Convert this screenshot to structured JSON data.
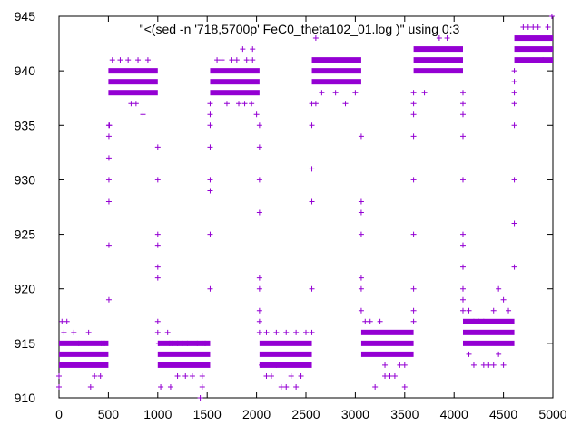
{
  "chart_data": {
    "type": "scatter",
    "title": "\"<(sed -n '718,5700p' FeC0_theta102_01.log )\" using 0:3",
    "xlabel": "",
    "ylabel": "",
    "xlim": [
      0,
      5000
    ],
    "ylim": [
      910,
      945
    ],
    "xticks": [
      0,
      500,
      1000,
      1500,
      2000,
      2500,
      3000,
      3500,
      4000,
      4500,
      5000
    ],
    "yticks": [
      910,
      915,
      920,
      925,
      930,
      935,
      940,
      945
    ],
    "grid": false,
    "marker": "plus",
    "color": "#9400d3",
    "dense_segments": [
      {
        "x0": 0,
        "x1": 500,
        "levels": [
          915,
          914,
          913
        ]
      },
      {
        "x0": 500,
        "x1": 1000,
        "levels": [
          940,
          939,
          938
        ]
      },
      {
        "x0": 1000,
        "x1": 1530,
        "levels": [
          915,
          914,
          913
        ]
      },
      {
        "x0": 1530,
        "x1": 2030,
        "levels": [
          940,
          939,
          938
        ]
      },
      {
        "x0": 2030,
        "x1": 2560,
        "levels": [
          915,
          914,
          913
        ]
      },
      {
        "x0": 2560,
        "x1": 3060,
        "levels": [
          941,
          940,
          939
        ]
      },
      {
        "x0": 3060,
        "x1": 3590,
        "levels": [
          916,
          915,
          914
        ]
      },
      {
        "x0": 3590,
        "x1": 4090,
        "levels": [
          942,
          941,
          940
        ]
      },
      {
        "x0": 4090,
        "x1": 4610,
        "levels": [
          917,
          916,
          915
        ]
      },
      {
        "x0": 4610,
        "x1": 5000,
        "levels": [
          943,
          942,
          941
        ]
      }
    ],
    "sparse_points": [
      [
        0,
        911
      ],
      [
        0,
        912
      ],
      [
        30,
        917
      ],
      [
        80,
        917
      ],
      [
        50,
        916
      ],
      [
        150,
        916
      ],
      [
        200,
        915
      ],
      [
        300,
        916
      ],
      [
        320,
        911
      ],
      [
        360,
        912
      ],
      [
        420,
        912
      ],
      [
        430,
        915
      ],
      [
        460,
        915
      ],
      [
        505,
        919
      ],
      [
        505,
        924
      ],
      [
        505,
        928
      ],
      [
        505,
        930
      ],
      [
        505,
        932
      ],
      [
        505,
        934
      ],
      [
        505,
        935
      ],
      [
        510,
        935
      ],
      [
        540,
        941
      ],
      [
        620,
        941
      ],
      [
        700,
        941
      ],
      [
        730,
        937
      ],
      [
        780,
        937
      ],
      [
        800,
        941
      ],
      [
        850,
        936
      ],
      [
        900,
        941
      ],
      [
        1000,
        917
      ],
      [
        1000,
        916
      ],
      [
        1010,
        915
      ],
      [
        1000,
        921
      ],
      [
        1000,
        922
      ],
      [
        1000,
        924
      ],
      [
        1000,
        925
      ],
      [
        1000,
        930
      ],
      [
        1000,
        933
      ],
      [
        1100,
        916
      ],
      [
        1120,
        915
      ],
      [
        1150,
        915
      ],
      [
        1200,
        915
      ],
      [
        1250,
        915
      ],
      [
        1300,
        915
      ],
      [
        1400,
        915
      ],
      [
        1450,
        915
      ],
      [
        1480,
        915
      ],
      [
        1030,
        911
      ],
      [
        1130,
        911
      ],
      [
        1200,
        912
      ],
      [
        1280,
        912
      ],
      [
        1350,
        912
      ],
      [
        1450,
        912
      ],
      [
        1430,
        910
      ],
      [
        1450,
        911
      ],
      [
        1530,
        920
      ],
      [
        1530,
        925
      ],
      [
        1530,
        929
      ],
      [
        1530,
        930
      ],
      [
        1530,
        933
      ],
      [
        1530,
        935
      ],
      [
        1530,
        936
      ],
      [
        1530,
        937
      ],
      [
        1600,
        941
      ],
      [
        1650,
        941
      ],
      [
        1750,
        941
      ],
      [
        1800,
        941
      ],
      [
        1900,
        941
      ],
      [
        1960,
        941
      ],
      [
        1950,
        937
      ],
      [
        1880,
        937
      ],
      [
        1820,
        937
      ],
      [
        1700,
        937
      ],
      [
        1860,
        942
      ],
      [
        1960,
        942
      ],
      [
        2000,
        936
      ],
      [
        2030,
        916
      ],
      [
        2030,
        917
      ],
      [
        2030,
        918
      ],
      [
        2030,
        920
      ],
      [
        2030,
        921
      ],
      [
        2030,
        927
      ],
      [
        2030,
        930
      ],
      [
        2030,
        933
      ],
      [
        2030,
        935
      ],
      [
        2100,
        916
      ],
      [
        2200,
        916
      ],
      [
        2300,
        916
      ],
      [
        2400,
        916
      ],
      [
        2500,
        916
      ],
      [
        2560,
        916
      ],
      [
        2050,
        913
      ],
      [
        2100,
        912
      ],
      [
        2150,
        912
      ],
      [
        2200,
        913
      ],
      [
        2250,
        911
      ],
      [
        2300,
        911
      ],
      [
        2350,
        912
      ],
      [
        2400,
        911
      ],
      [
        2450,
        912
      ],
      [
        2560,
        920
      ],
      [
        2560,
        928
      ],
      [
        2560,
        931
      ],
      [
        2560,
        935
      ],
      [
        2560,
        937
      ],
      [
        2600,
        943
      ],
      [
        2600,
        937
      ],
      [
        2660,
        938
      ],
      [
        2800,
        938
      ],
      [
        2900,
        937
      ],
      [
        3000,
        938
      ],
      [
        3060,
        918
      ],
      [
        3060,
        920
      ],
      [
        3060,
        921
      ],
      [
        3060,
        925
      ],
      [
        3060,
        927
      ],
      [
        3060,
        928
      ],
      [
        3060,
        934
      ],
      [
        3100,
        917
      ],
      [
        3150,
        917
      ],
      [
        3250,
        917
      ],
      [
        3300,
        913
      ],
      [
        3350,
        912
      ],
      [
        3450,
        913
      ],
      [
        3500,
        913
      ],
      [
        3200,
        911
      ],
      [
        3300,
        912
      ],
      [
        3400,
        912
      ],
      [
        3500,
        911
      ],
      [
        3590,
        917
      ],
      [
        3590,
        918
      ],
      [
        3590,
        920
      ],
      [
        3590,
        925
      ],
      [
        3590,
        930
      ],
      [
        3590,
        934
      ],
      [
        3590,
        936
      ],
      [
        3590,
        937
      ],
      [
        3590,
        938
      ],
      [
        3700,
        938
      ],
      [
        3850,
        943
      ],
      [
        3930,
        943
      ],
      [
        4090,
        918
      ],
      [
        4090,
        919
      ],
      [
        4090,
        920
      ],
      [
        4090,
        922
      ],
      [
        4090,
        924
      ],
      [
        4090,
        925
      ],
      [
        4090,
        930
      ],
      [
        4090,
        934
      ],
      [
        4090,
        936
      ],
      [
        4090,
        937
      ],
      [
        4090,
        938
      ],
      [
        4150,
        918
      ],
      [
        4200,
        917
      ],
      [
        4250,
        917
      ],
      [
        4300,
        917
      ],
      [
        4400,
        918
      ],
      [
        4450,
        920
      ],
      [
        4500,
        919
      ],
      [
        4550,
        918
      ],
      [
        4150,
        914
      ],
      [
        4200,
        913
      ],
      [
        4300,
        913
      ],
      [
        4350,
        913
      ],
      [
        4400,
        913
      ],
      [
        4450,
        914
      ],
      [
        4500,
        913
      ],
      [
        4610,
        922
      ],
      [
        4610,
        926
      ],
      [
        4610,
        930
      ],
      [
        4610,
        935
      ],
      [
        4610,
        937
      ],
      [
        4610,
        938
      ],
      [
        4610,
        939
      ],
      [
        4610,
        940
      ],
      [
        4700,
        944
      ],
      [
        4750,
        944
      ],
      [
        4800,
        944
      ],
      [
        4850,
        944
      ],
      [
        4900,
        941
      ],
      [
        4950,
        944
      ],
      [
        4990,
        945
      ]
    ]
  }
}
